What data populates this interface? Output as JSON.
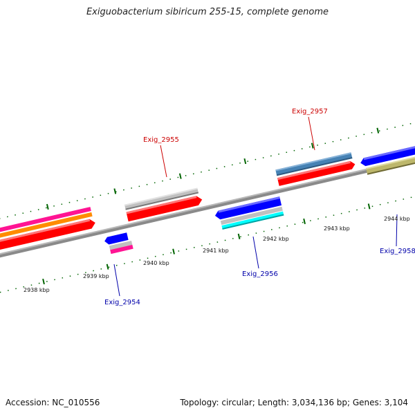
{
  "title": "Exiguobacterium sibiricum 255-15, complete genome",
  "footer": {
    "accession": "Accession: NC_010556",
    "summary": "Topology: circular; Length: 3,034,136 bp; Genes: 3,104"
  },
  "ticks": [
    "2938 kbp",
    "2939 kbp",
    "2940 kbp",
    "2941 kbp",
    "2942 kbp",
    "2943 kbp",
    "2944 kbp"
  ],
  "gene_labels": [
    {
      "text": "Exig_2955",
      "color": "#cc0000"
    },
    {
      "text": "Exig_2957",
      "color": "#cc0000"
    },
    {
      "text": "Exig_2954",
      "color": "#0000aa"
    },
    {
      "text": "Exig_2956",
      "color": "#0000aa"
    },
    {
      "text": "Exig_2958",
      "color": "#0000aa"
    }
  ],
  "colors": {
    "backbone": "#8a8a8a",
    "cds": "#ff0000",
    "gene": "#0000ff",
    "rrna": "#c0c0c0",
    "magenta": "#ff1493",
    "orange": "#ff8c00",
    "steelblue": "#4682b4",
    "cyan": "#00ffff",
    "olive": "#bdb76b",
    "tick": "#006400"
  }
}
